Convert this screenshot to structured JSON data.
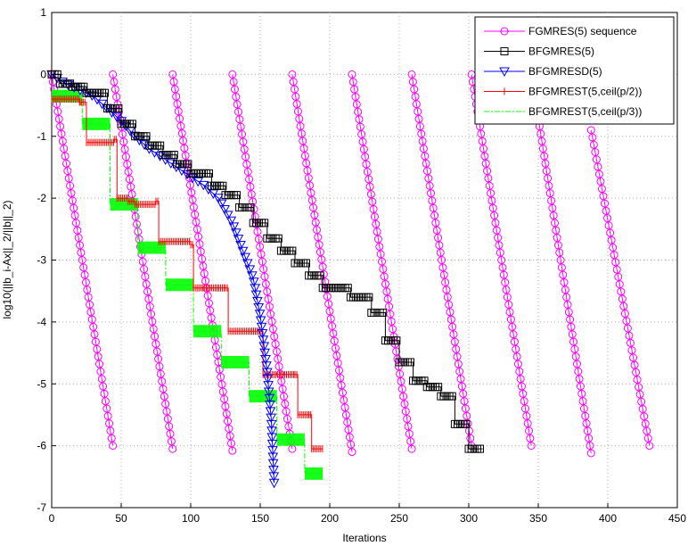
{
  "chart_data": {
    "type": "line",
    "xlabel": "Iterations",
    "ylabel": "log10(||b_i-Ax||_2/||b||_2)",
    "xlim": [
      0,
      450
    ],
    "ylim": [
      -7,
      1
    ],
    "xticks": [
      "0",
      "50",
      "100",
      "150",
      "200",
      "250",
      "300",
      "350",
      "400",
      "450"
    ],
    "yticks": [
      "1",
      "0",
      "-1",
      "-2",
      "-3",
      "-4",
      "-5",
      "-6",
      "-7"
    ],
    "grid": true,
    "legend_position": "top-right",
    "legend": [
      {
        "label": "FGMRES(5) sequence",
        "color": "#ff00ff",
        "marker": "circle"
      },
      {
        "label": "BFGMRES(5)",
        "color": "#000000",
        "marker": "square"
      },
      {
        "label": "BFGMRESD(5)",
        "color": "#0000ff",
        "marker": "triangle-down"
      },
      {
        "label": "BFGMREST(5,ceil(p/2))",
        "color": "#ff0000",
        "marker": "plus"
      },
      {
        "label": "BFGMREST(5,ceil(p/3))",
        "color": "#00ff00",
        "marker": "dashdot"
      }
    ],
    "series": [
      {
        "name": "FGMRES(5) sequence",
        "color": "#ff00ff",
        "segments": [
          [
            [
              0,
              0
            ],
            [
              44,
              -6.0
            ]
          ],
          [
            [
              44,
              0
            ],
            [
              87,
              -6.05
            ]
          ],
          [
            [
              87,
              0
            ],
            [
              130,
              -6.08
            ]
          ],
          [
            [
              130,
              0
            ],
            [
              173,
              -6.05
            ]
          ],
          [
            [
              173,
              0
            ],
            [
              216,
              -6.1
            ]
          ],
          [
            [
              216,
              0
            ],
            [
              259,
              -6.05
            ]
          ],
          [
            [
              259,
              0
            ],
            [
              302,
              -6.0
            ]
          ],
          [
            [
              302,
              0
            ],
            [
              345,
              -6.0
            ]
          ],
          [
            [
              345,
              0
            ],
            [
              388,
              -6.12
            ]
          ],
          [
            [
              388,
              -0.9
            ],
            [
              430,
              -6.0
            ]
          ]
        ]
      },
      {
        "name": "BFGMRES(5)",
        "color": "#000000",
        "steps": [
          [
            0,
            0
          ],
          [
            6,
            -0.15
          ],
          [
            15,
            -0.2
          ],
          [
            25,
            -0.3
          ],
          [
            40,
            -0.55
          ],
          [
            50,
            -0.8
          ],
          [
            60,
            -1.0
          ],
          [
            70,
            -1.15
          ],
          [
            80,
            -1.3
          ],
          [
            90,
            -1.45
          ],
          [
            100,
            -1.6
          ],
          [
            115,
            -1.8
          ],
          [
            125,
            -1.95
          ],
          [
            135,
            -2.15
          ],
          [
            145,
            -2.4
          ],
          [
            155,
            -2.65
          ],
          [
            165,
            -2.85
          ],
          [
            175,
            -3.05
          ],
          [
            185,
            -3.25
          ],
          [
            195,
            -3.45
          ],
          [
            215,
            -3.6
          ],
          [
            230,
            -3.85
          ],
          [
            240,
            -4.3
          ],
          [
            250,
            -4.65
          ],
          [
            260,
            -4.95
          ],
          [
            270,
            -5.05
          ],
          [
            280,
            -5.2
          ],
          [
            290,
            -5.65
          ],
          [
            300,
            -6.05
          ],
          [
            310,
            -6.05
          ]
        ]
      },
      {
        "name": "BFGMRESD(5)",
        "color": "#0000ff",
        "points": [
          [
            0,
            0
          ],
          [
            10,
            -0.15
          ],
          [
            20,
            -0.25
          ],
          [
            30,
            -0.35
          ],
          [
            40,
            -0.55
          ],
          [
            50,
            -0.75
          ],
          [
            60,
            -1.0
          ],
          [
            70,
            -1.2
          ],
          [
            80,
            -1.35
          ],
          [
            90,
            -1.5
          ],
          [
            100,
            -1.65
          ],
          [
            110,
            -1.8
          ],
          [
            120,
            -2.0
          ],
          [
            130,
            -2.4
          ],
          [
            140,
            -3.0
          ],
          [
            145,
            -3.3
          ],
          [
            150,
            -3.9
          ],
          [
            155,
            -4.8
          ],
          [
            158,
            -5.6
          ],
          [
            160,
            -6.6
          ]
        ]
      },
      {
        "name": "BFGMREST(5,ceil(p/2))",
        "color": "#ff0000",
        "steps": [
          [
            0,
            -0.4
          ],
          [
            20,
            -0.45
          ],
          [
            25,
            -1.1
          ],
          [
            45,
            -1.05
          ],
          [
            47,
            -2.0
          ],
          [
            55,
            -2.05
          ],
          [
            60,
            -2.1
          ],
          [
            75,
            -2.05
          ],
          [
            77,
            -2.7
          ],
          [
            100,
            -2.75
          ],
          [
            102,
            -3.45
          ],
          [
            125,
            -3.45
          ],
          [
            127,
            -4.15
          ],
          [
            150,
            -4.15
          ],
          [
            152,
            -4.85
          ],
          [
            175,
            -4.85
          ],
          [
            177,
            -5.5
          ],
          [
            185,
            -5.5
          ],
          [
            187,
            -6.05
          ],
          [
            195,
            -6.05
          ]
        ]
      },
      {
        "name": "BFGMREST(5,ceil(p/3))",
        "color": "#00ff00",
        "steps": [
          [
            0,
            -0.35
          ],
          [
            20,
            -0.4
          ],
          [
            22,
            -0.8
          ],
          [
            40,
            -0.8
          ],
          [
            42,
            -2.1
          ],
          [
            60,
            -2.1
          ],
          [
            62,
            -2.8
          ],
          [
            80,
            -2.8
          ],
          [
            82,
            -3.4
          ],
          [
            100,
            -3.4
          ],
          [
            102,
            -4.15
          ],
          [
            120,
            -4.15
          ],
          [
            122,
            -4.65
          ],
          [
            140,
            -4.65
          ],
          [
            142,
            -5.2
          ],
          [
            160,
            -5.2
          ],
          [
            162,
            -5.9
          ],
          [
            180,
            -5.9
          ],
          [
            182,
            -6.45
          ],
          [
            195,
            -6.45
          ]
        ]
      }
    ]
  }
}
